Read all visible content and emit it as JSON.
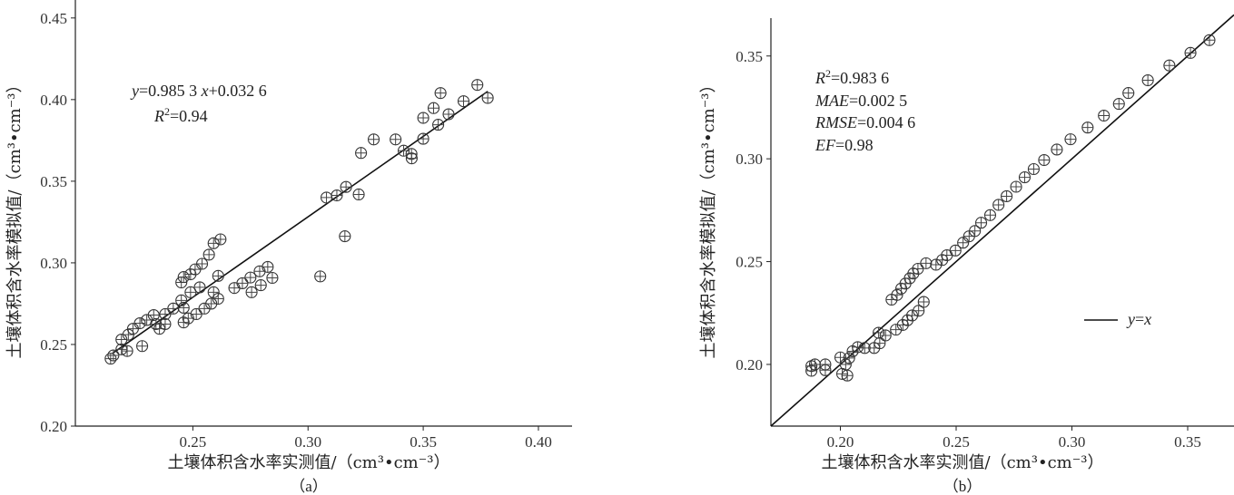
{
  "chart_data": [
    {
      "id": "a",
      "type": "scatter",
      "caption": "（a）",
      "xlabel": "土壤体积含水率实测值/（cm³•cm⁻³）",
      "ylabel": "土壤体积含水率模拟值/（cm³•cm⁻³）",
      "xlim": [
        0.199,
        0.4146
      ],
      "ylim": [
        0.2,
        0.461
      ],
      "xticks": [
        "0.25",
        "0.30",
        "0.35",
        "0.40"
      ],
      "yticks": [
        "0.20",
        "0.25",
        "0.30",
        "0.35",
        "0.40",
        "0.45"
      ],
      "grid": false,
      "fit_line": {
        "slope": 0.9853,
        "intercept": 0.0326,
        "x_range": [
          0.215,
          0.378
        ]
      },
      "annotations": {
        "equation_y": "y",
        "equation_rest": "=0.985 3 ",
        "equation_x": "x",
        "equation_tail": "+0.032 6",
        "r2_var": "R",
        "r2_sup": "2",
        "r2_value": "=0.94"
      },
      "points": [
        [
          0.2143,
          0.2413
        ],
        [
          0.2155,
          0.2433
        ],
        [
          0.219,
          0.247
        ],
        [
          0.219,
          0.253
        ],
        [
          0.2215,
          0.246
        ],
        [
          0.222,
          0.256
        ],
        [
          0.224,
          0.2596
        ],
        [
          0.228,
          0.249
        ],
        [
          0.227,
          0.263
        ],
        [
          0.23,
          0.265
        ],
        [
          0.233,
          0.268
        ],
        [
          0.234,
          0.2625
        ],
        [
          0.2355,
          0.2596
        ],
        [
          0.238,
          0.2625
        ],
        [
          0.238,
          0.2686
        ],
        [
          0.2415,
          0.272
        ],
        [
          0.245,
          0.277
        ],
        [
          0.246,
          0.2725
        ],
        [
          0.245,
          0.288
        ],
        [
          0.246,
          0.2913
        ],
        [
          0.249,
          0.293
        ],
        [
          0.251,
          0.296
        ],
        [
          0.254,
          0.2994
        ],
        [
          0.257,
          0.305
        ],
        [
          0.259,
          0.312
        ],
        [
          0.262,
          0.3144
        ],
        [
          0.246,
          0.2635
        ],
        [
          0.248,
          0.266
        ],
        [
          0.249,
          0.282
        ],
        [
          0.253,
          0.285
        ],
        [
          0.2515,
          0.2686
        ],
        [
          0.255,
          0.272
        ],
        [
          0.258,
          0.275
        ],
        [
          0.259,
          0.282
        ],
        [
          0.261,
          0.278
        ],
        [
          0.261,
          0.292
        ],
        [
          0.268,
          0.2846
        ],
        [
          0.2715,
          0.2875
        ],
        [
          0.275,
          0.291
        ],
        [
          0.2755,
          0.282
        ],
        [
          0.279,
          0.2948
        ],
        [
          0.2795,
          0.2863
        ],
        [
          0.2825,
          0.2975
        ],
        [
          0.2845,
          0.2908
        ],
        [
          0.3053,
          0.2917
        ],
        [
          0.308,
          0.34
        ],
        [
          0.3125,
          0.3413
        ],
        [
          0.3165,
          0.3465
        ],
        [
          0.316,
          0.3163
        ],
        [
          0.322,
          0.3419
        ],
        [
          0.323,
          0.3673
        ],
        [
          0.3285,
          0.3756
        ],
        [
          0.338,
          0.3756
        ],
        [
          0.3415,
          0.3687
        ],
        [
          0.3449,
          0.3667
        ],
        [
          0.345,
          0.364
        ],
        [
          0.35,
          0.376
        ],
        [
          0.35,
          0.3888
        ],
        [
          0.3545,
          0.3948
        ],
        [
          0.3565,
          0.3846
        ],
        [
          0.3575,
          0.404
        ],
        [
          0.361,
          0.391
        ],
        [
          0.3675,
          0.399
        ],
        [
          0.3735,
          0.409
        ],
        [
          0.378,
          0.401
        ]
      ]
    },
    {
      "id": "b",
      "type": "scatter",
      "caption": "（b）",
      "xlabel": "土壤体积含水率实测值/（cm³•cm⁻³）",
      "ylabel": "土壤体积含水率模拟值/（cm³•cm⁻³）",
      "xlim": [
        0.17,
        0.37
      ],
      "ylim": [
        0.17,
        0.37
      ],
      "xticks": [
        "0.20",
        "0.25",
        "0.30",
        "0.35"
      ],
      "yticks": [
        "0.20",
        "0.25",
        "0.30",
        "0.35"
      ],
      "grid": false,
      "reference_line": {
        "slope": 1,
        "intercept": 0,
        "x_range": [
          0.17,
          0.37
        ]
      },
      "legend": {
        "position": "center-right",
        "label_y": "y",
        "label_eq": "=",
        "label_x": "x"
      },
      "annotations": {
        "r2_var": "R",
        "r2_sup": "2",
        "r2_value": "=0.983 6",
        "mae_var": "MAE",
        "mae_value": "=0.002 5",
        "rmse_var": "RMSE",
        "rmse_value": "=0.004 6",
        "ef_var": "EF",
        "ef_value": "=0.98"
      },
      "points": [
        [
          0.1875,
          0.1969
        ],
        [
          0.1875,
          0.1992
        ],
        [
          0.189,
          0.2
        ],
        [
          0.1935,
          0.1972
        ],
        [
          0.1935,
          0.2
        ],
        [
          0.2,
          0.2034
        ],
        [
          0.2008,
          0.1954
        ],
        [
          0.203,
          0.1946
        ],
        [
          0.2023,
          0.2
        ],
        [
          0.2038,
          0.2031
        ],
        [
          0.2053,
          0.2064
        ],
        [
          0.2075,
          0.2084
        ],
        [
          0.2105,
          0.208
        ],
        [
          0.2146,
          0.208
        ],
        [
          0.217,
          0.2103
        ],
        [
          0.2165,
          0.2154
        ],
        [
          0.2195,
          0.2141
        ],
        [
          0.224,
          0.2169
        ],
        [
          0.227,
          0.2192
        ],
        [
          0.229,
          0.2215
        ],
        [
          0.231,
          0.2238
        ],
        [
          0.2338,
          0.2261
        ],
        [
          0.236,
          0.2304
        ],
        [
          0.2221,
          0.2315
        ],
        [
          0.2245,
          0.2338
        ],
        [
          0.2263,
          0.2369
        ],
        [
          0.2281,
          0.2393
        ],
        [
          0.23,
          0.2419
        ],
        [
          0.2315,
          0.2442
        ],
        [
          0.2335,
          0.2465
        ],
        [
          0.237,
          0.2492
        ],
        [
          0.2413,
          0.2485
        ],
        [
          0.244,
          0.2508
        ],
        [
          0.246,
          0.2531
        ],
        [
          0.2497,
          0.2554
        ],
        [
          0.253,
          0.2592
        ],
        [
          0.2556,
          0.2623
        ],
        [
          0.2581,
          0.2649
        ],
        [
          0.2608,
          0.2689
        ],
        [
          0.2647,
          0.2726
        ],
        [
          0.2683,
          0.2776
        ],
        [
          0.2718,
          0.2818
        ],
        [
          0.2759,
          0.2864
        ],
        [
          0.2796,
          0.291
        ],
        [
          0.2835,
          0.295
        ],
        [
          0.288,
          0.2994
        ],
        [
          0.2935,
          0.3045
        ],
        [
          0.2994,
          0.3095
        ],
        [
          0.3068,
          0.3152
        ],
        [
          0.3138,
          0.321
        ],
        [
          0.3203,
          0.3267
        ],
        [
          0.3244,
          0.332
        ],
        [
          0.3328,
          0.3382
        ],
        [
          0.3421,
          0.3454
        ],
        [
          0.3512,
          0.3515
        ],
        [
          0.3594,
          0.3577
        ]
      ]
    }
  ]
}
